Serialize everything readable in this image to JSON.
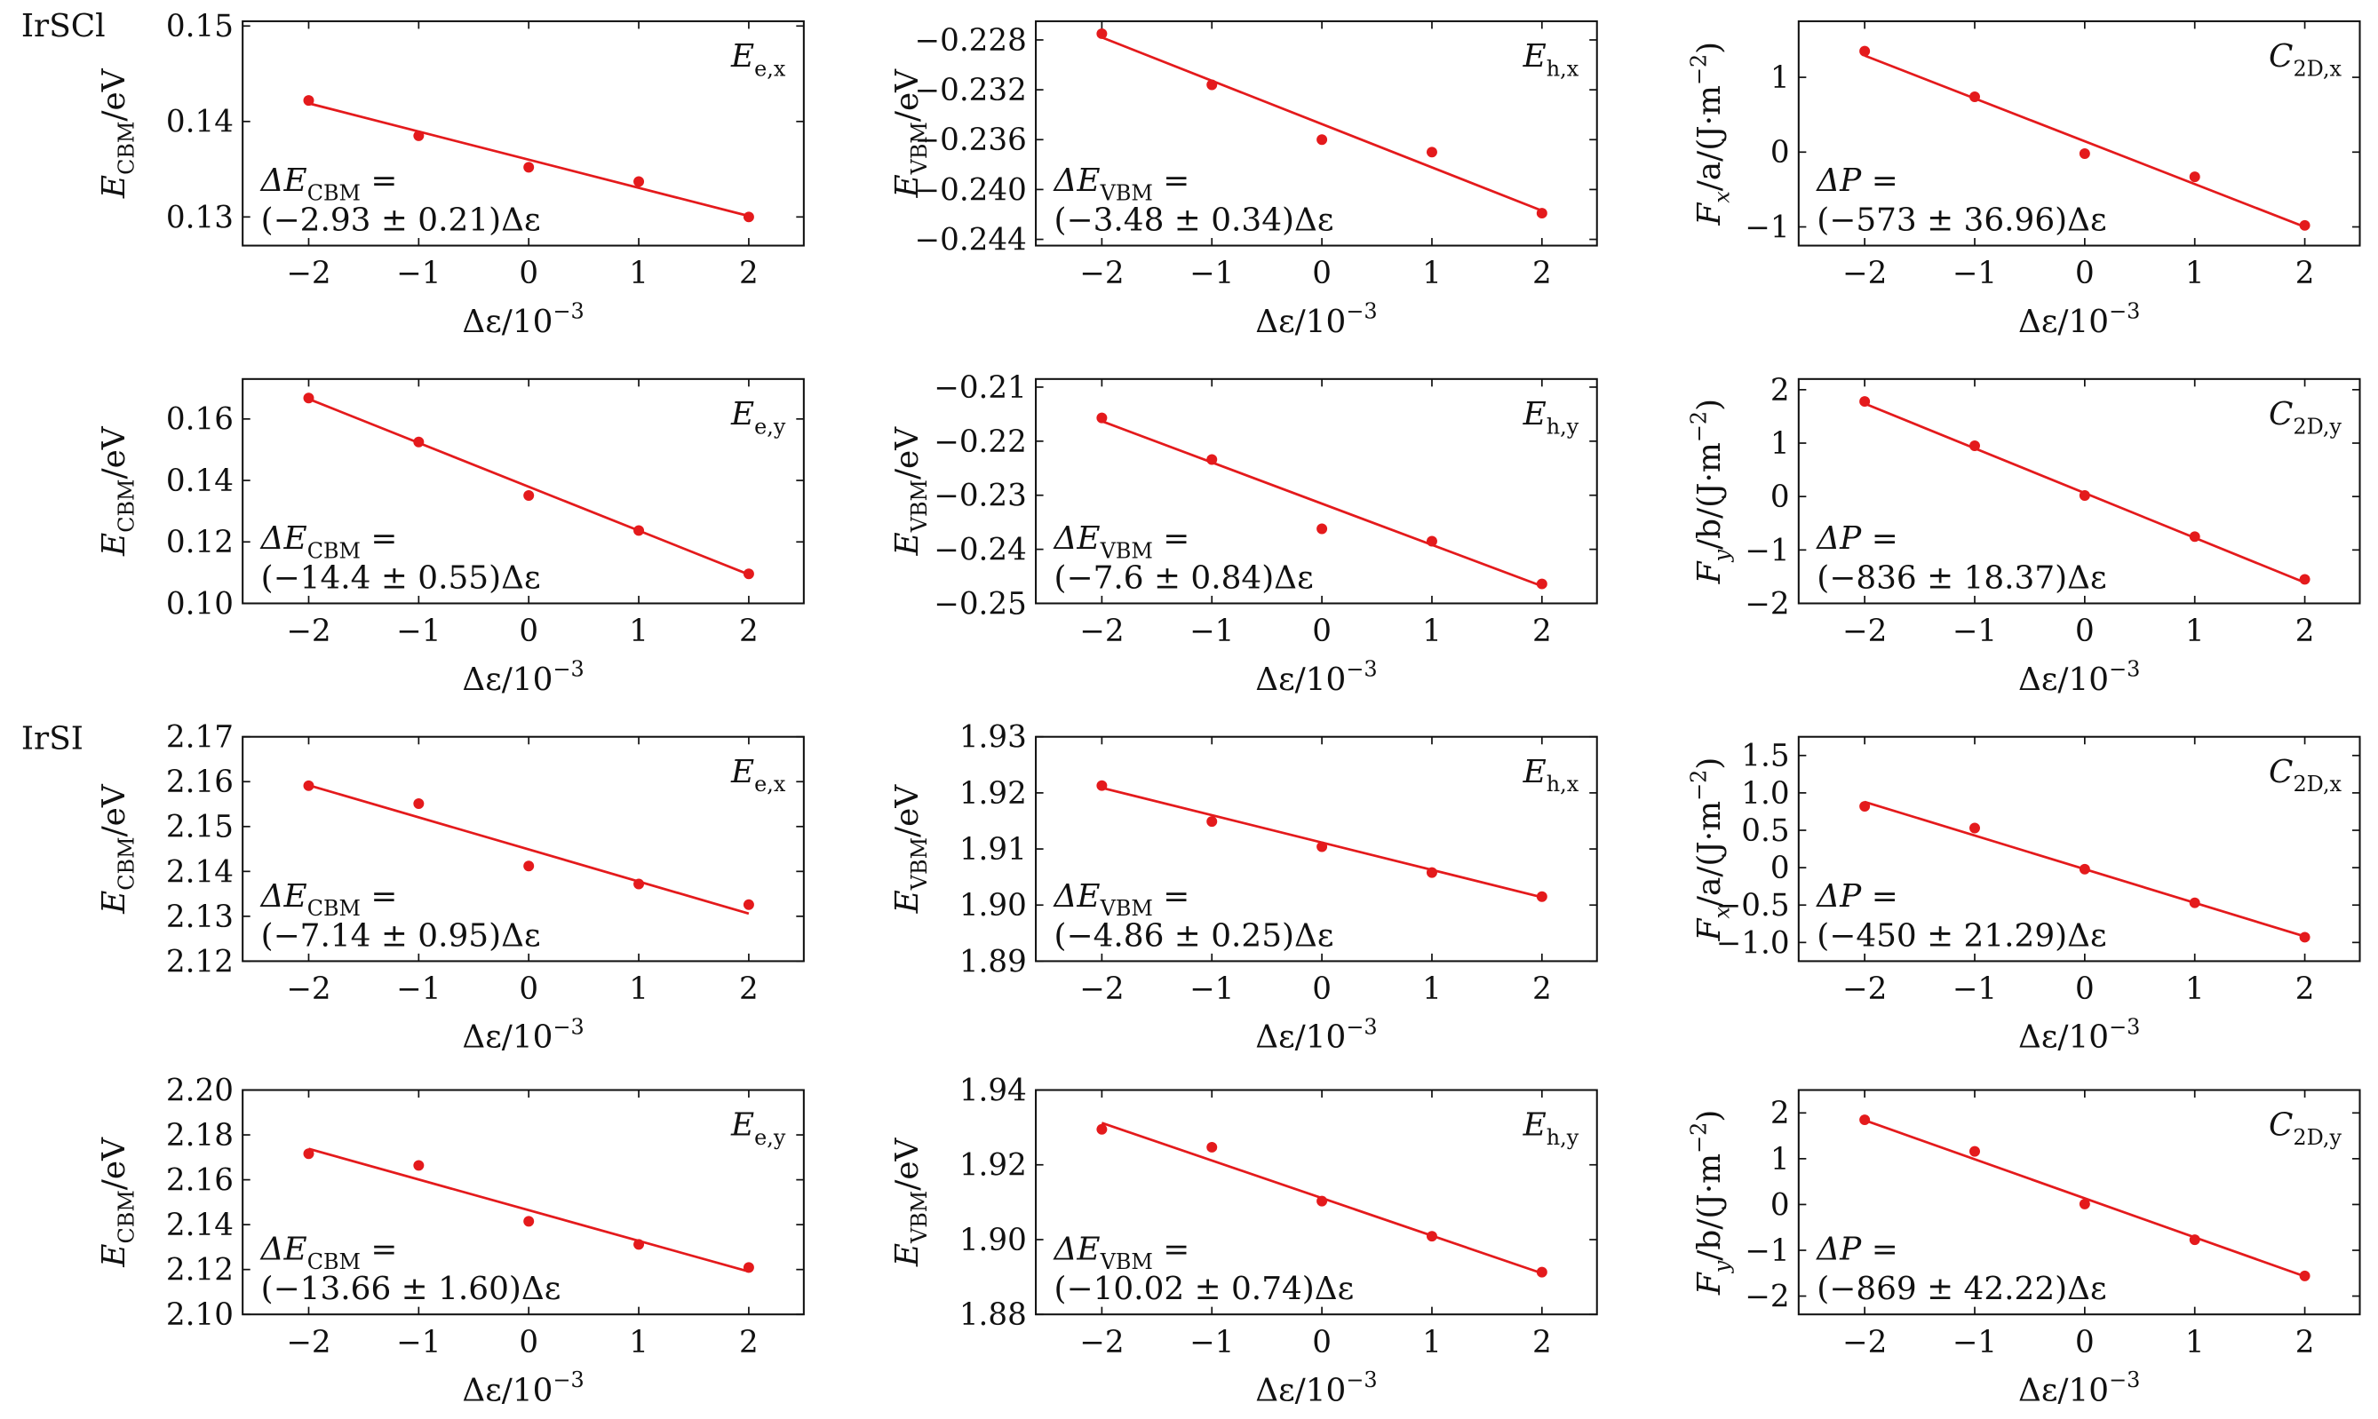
{
  "colors": {
    "data": "#e41a1c",
    "fit": "#e41a1c",
    "axis": "#111111"
  },
  "chart_data": [
    {
      "id": "irscl-e-x",
      "type": "scatter",
      "group": "IrSCl",
      "x": [
        -2,
        -1,
        0,
        1,
        2
      ],
      "y": [
        0.1422,
        0.1385,
        0.1352,
        0.1337,
        0.13
      ],
      "fit": {
        "x": [
          -2,
          2
        ],
        "y": [
          0.1419,
          0.1301
        ]
      },
      "xlim": [
        -2.6,
        2.5
      ],
      "ylim": [
        0.127,
        0.1505
      ],
      "xticks": [
        -2,
        -1,
        0,
        1,
        2
      ],
      "xtick_labels": [
        "−2",
        "−1",
        "0",
        "1",
        "2"
      ],
      "yticks": [
        0.13,
        0.14,
        0.15
      ],
      "ytick_labels": [
        "0.13",
        "0.14",
        "0.15"
      ],
      "ylabel_main": "E",
      "ylabel_sub": "CBM",
      "ylabel_unit": "/eV",
      "xlabel_main": "Δε/10",
      "xlabel_sup": "−3",
      "tag_main": "E",
      "tag_sub": "e,x",
      "annot_line1_main": "ΔE",
      "annot_line1_sub": "CBM",
      "annot_line1_tail": " =",
      "annot_line2": "(−2.93 ± 0.21)Δε"
    },
    {
      "id": "irscl-h-x",
      "type": "scatter",
      "group": "IrSCl",
      "x": [
        -2,
        -1,
        0,
        1,
        2
      ],
      "y": [
        -0.2275,
        -0.2316,
        -0.236,
        -0.237,
        -0.2419
      ],
      "fit": {
        "x": [
          -2,
          2
        ],
        "y": [
          -0.2278,
          -0.2417
        ]
      },
      "xlim": [
        -2.6,
        2.5
      ],
      "ylim": [
        -0.2445,
        -0.2265
      ],
      "xticks": [
        -2,
        -1,
        0,
        1,
        2
      ],
      "xtick_labels": [
        "−2",
        "−1",
        "0",
        "1",
        "2"
      ],
      "yticks": [
        -0.228,
        -0.232,
        -0.236,
        -0.24,
        -0.244
      ],
      "ytick_labels": [
        "−0.228",
        "−0.232",
        "−0.236",
        "−0.240",
        "−0.244"
      ],
      "ylabel_main": "E",
      "ylabel_sub": "VBM",
      "ylabel_unit": "/eV",
      "xlabel_main": "Δε/10",
      "xlabel_sup": "−3",
      "tag_main": "E",
      "tag_sub": "h,x",
      "annot_line1_main": "ΔE",
      "annot_line1_sub": "VBM",
      "annot_line1_tail": " =",
      "annot_line2": "(−3.48 ± 0.34)Δε"
    },
    {
      "id": "irscl-c-x",
      "type": "scatter",
      "group": "IrSCl",
      "x": [
        -2,
        -1,
        0,
        1,
        2
      ],
      "y": [
        1.35,
        0.74,
        -0.02,
        -0.33,
        -0.98
      ],
      "fit": {
        "x": [
          -2,
          2
        ],
        "y": [
          1.29,
          -1.0
        ]
      },
      "xlim": [
        -2.6,
        2.5
      ],
      "ylim": [
        -1.25,
        1.75
      ],
      "xticks": [
        -2,
        -1,
        0,
        1,
        2
      ],
      "xtick_labels": [
        "−2",
        "−1",
        "0",
        "1",
        "2"
      ],
      "yticks": [
        -1,
        0,
        1
      ],
      "ytick_labels": [
        "−1",
        "0",
        "1"
      ],
      "ylabel_main": "F",
      "ylabel_sub": "x",
      "ylabel_unit": "/a/(J·m",
      "ylabel_sup": "−2",
      "ylabel_close": ")",
      "xlabel_main": "Δε/10",
      "xlabel_sup": "−3",
      "tag_main": "C",
      "tag_sub": "2D,x",
      "annot_line1_main": "ΔP",
      "annot_line1_sub": "",
      "annot_line1_tail": " =",
      "annot_line2": "(−573 ± 36.96)Δε"
    },
    {
      "id": "irscl-e-y",
      "type": "scatter",
      "group": "IrSCl",
      "x": [
        -2,
        -1,
        0,
        1,
        2
      ],
      "y": [
        0.1668,
        0.1525,
        0.1351,
        0.1237,
        0.1096
      ],
      "fit": {
        "x": [
          -2,
          2
        ],
        "y": [
          0.1665,
          0.1094
        ]
      },
      "xlim": [
        -2.6,
        2.5
      ],
      "ylim": [
        0.1,
        0.173
      ],
      "xticks": [
        -2,
        -1,
        0,
        1,
        2
      ],
      "xtick_labels": [
        "−2",
        "−1",
        "0",
        "1",
        "2"
      ],
      "yticks": [
        0.1,
        0.12,
        0.14,
        0.16
      ],
      "ytick_labels": [
        "0.10",
        "0.12",
        "0.14",
        "0.16"
      ],
      "ylabel_main": "E",
      "ylabel_sub": "CBM",
      "ylabel_unit": "/eV",
      "xlabel_main": "Δε/10",
      "xlabel_sup": "−3",
      "tag_main": "E",
      "tag_sub": "e,y",
      "annot_line1_main": "ΔE",
      "annot_line1_sub": "CBM",
      "annot_line1_tail": " =",
      "annot_line2": "(−14.4 ± 0.55)Δε"
    },
    {
      "id": "irscl-h-y",
      "type": "scatter",
      "group": "IrSCl",
      "x": [
        -2,
        -1,
        0,
        1,
        2
      ],
      "y": [
        -0.2157,
        -0.2234,
        -0.2362,
        -0.2385,
        -0.2464
      ],
      "fit": {
        "x": [
          -2,
          2
        ],
        "y": [
          -0.2163,
          -0.2468
        ]
      },
      "xlim": [
        -2.6,
        2.5
      ],
      "ylim": [
        -0.25,
        -0.2085
      ],
      "xticks": [
        -2,
        -1,
        0,
        1,
        2
      ],
      "xtick_labels": [
        "−2",
        "−1",
        "0",
        "1",
        "2"
      ],
      "yticks": [
        -0.21,
        -0.22,
        -0.23,
        -0.24,
        -0.25
      ],
      "ytick_labels": [
        "−0.21",
        "−0.22",
        "−0.23",
        "−0.24",
        "−0.25"
      ],
      "ylabel_main": "E",
      "ylabel_sub": "VBM",
      "ylabel_unit": "/eV",
      "xlabel_main": "Δε/10",
      "xlabel_sup": "−3",
      "tag_main": "E",
      "tag_sub": "h,y",
      "annot_line1_main": "ΔE",
      "annot_line1_sub": "VBM",
      "annot_line1_tail": " =",
      "annot_line2": "(−7.6 ± 0.84)Δε"
    },
    {
      "id": "irscl-c-y",
      "type": "scatter",
      "group": "IrSCl",
      "x": [
        -2,
        -1,
        0,
        1,
        2
      ],
      "y": [
        1.78,
        0.95,
        0.02,
        -0.75,
        -1.55
      ],
      "fit": {
        "x": [
          -2,
          2
        ],
        "y": [
          1.74,
          -1.61
        ]
      },
      "xlim": [
        -2.6,
        2.5
      ],
      "ylim": [
        -2.0,
        2.2
      ],
      "xticks": [
        -2,
        -1,
        0,
        1,
        2
      ],
      "xtick_labels": [
        "−2",
        "−1",
        "0",
        "1",
        "2"
      ],
      "yticks": [
        -2,
        -1,
        0,
        1,
        2
      ],
      "ytick_labels": [
        "−2",
        "−1",
        "0",
        "1",
        "2"
      ],
      "ylabel_main": "F",
      "ylabel_sub": "y",
      "ylabel_unit": "/b/(J·m",
      "ylabel_sup": "−2",
      "ylabel_close": ")",
      "xlabel_main": "Δε/10",
      "xlabel_sup": "−3",
      "tag_main": "C",
      "tag_sub": "2D,y",
      "annot_line1_main": "ΔP",
      "annot_line1_sub": "",
      "annot_line1_tail": " =",
      "annot_line2": "(−836 ± 18.37)Δε"
    },
    {
      "id": "irsi-e-x",
      "type": "scatter",
      "group": "IrSI",
      "x": [
        -2,
        -1,
        0,
        1,
        2
      ],
      "y": [
        2.1591,
        2.1551,
        2.1412,
        2.1372,
        2.1326
      ],
      "fit": {
        "x": [
          -2,
          2
        ],
        "y": [
          2.1592,
          2.1306
        ]
      },
      "xlim": [
        -2.6,
        2.5
      ],
      "ylim": [
        2.12,
        2.17
      ],
      "xticks": [
        -2,
        -1,
        0,
        1,
        2
      ],
      "xtick_labels": [
        "−2",
        "−1",
        "0",
        "1",
        "2"
      ],
      "yticks": [
        2.12,
        2.13,
        2.14,
        2.15,
        2.16,
        2.17
      ],
      "ytick_labels": [
        "2.12",
        "2.13",
        "2.14",
        "2.15",
        "2.16",
        "2.17"
      ],
      "ylabel_main": "E",
      "ylabel_sub": "CBM",
      "ylabel_unit": "/eV",
      "xlabel_main": "Δε/10",
      "xlabel_sup": "−3",
      "tag_main": "E",
      "tag_sub": "e,x",
      "annot_line1_main": "ΔE",
      "annot_line1_sub": "CBM",
      "annot_line1_tail": " =",
      "annot_line2": "(−7.14 ± 0.95)Δε"
    },
    {
      "id": "irsi-h-x",
      "type": "scatter",
      "group": "IrSI",
      "x": [
        -2,
        -1,
        0,
        1,
        2
      ],
      "y": [
        1.9213,
        1.9149,
        1.9104,
        1.9058,
        1.9015
      ],
      "fit": {
        "x": [
          -2,
          2
        ],
        "y": [
          1.9209,
          1.9014
        ]
      },
      "xlim": [
        -2.6,
        2.5
      ],
      "ylim": [
        1.89,
        1.93
      ],
      "xticks": [
        -2,
        -1,
        0,
        1,
        2
      ],
      "xtick_labels": [
        "−2",
        "−1",
        "0",
        "1",
        "2"
      ],
      "yticks": [
        1.89,
        1.9,
        1.91,
        1.92,
        1.93
      ],
      "ytick_labels": [
        "1.89",
        "1.90",
        "1.91",
        "1.92",
        "1.93"
      ],
      "ylabel_main": "E",
      "ylabel_sub": "VBM",
      "ylabel_unit": "/eV",
      "xlabel_main": "Δε/10",
      "xlabel_sup": "−3",
      "tag_main": "E",
      "tag_sub": "h,x",
      "annot_line1_main": "ΔE",
      "annot_line1_sub": "VBM",
      "annot_line1_tail": " =",
      "annot_line2": "(−4.86 ± 0.25)Δε"
    },
    {
      "id": "irsi-c-x",
      "type": "scatter",
      "group": "IrSI",
      "x": [
        -2,
        -1,
        0,
        1,
        2
      ],
      "y": [
        0.82,
        0.53,
        -0.02,
        -0.47,
        -0.93
      ],
      "fit": {
        "x": [
          -2,
          2
        ],
        "y": [
          0.88,
          -0.92
        ]
      },
      "xlim": [
        -2.6,
        2.5
      ],
      "ylim": [
        -1.25,
        1.75
      ],
      "xticks": [
        -2,
        -1,
        0,
        1,
        2
      ],
      "xtick_labels": [
        "−2",
        "−1",
        "0",
        "1",
        "2"
      ],
      "yticks": [
        -1.0,
        -0.5,
        0,
        0.5,
        1.0,
        1.5
      ],
      "ytick_labels": [
        "−1.0",
        "−0.5",
        "0",
        "0.5",
        "1.0",
        "1.5"
      ],
      "ylabel_main": "F",
      "ylabel_sub": "x",
      "ylabel_unit": "/a/(J·m",
      "ylabel_sup": "−2",
      "ylabel_close": ")",
      "xlabel_main": "Δε/10",
      "xlabel_sup": "−3",
      "tag_main": "C",
      "tag_sub": "2D,x",
      "annot_line1_main": "ΔP",
      "annot_line1_sub": "",
      "annot_line1_tail": " =",
      "annot_line2": "(−450 ± 21.29)Δε"
    },
    {
      "id": "irsi-e-y",
      "type": "scatter",
      "group": "IrSI",
      "x": [
        -2,
        -1,
        0,
        1,
        2
      ],
      "y": [
        2.1716,
        2.1664,
        2.1415,
        2.1312,
        2.1209
      ],
      "fit": {
        "x": [
          -2,
          2
        ],
        "y": [
          2.1738,
          2.1191
        ]
      },
      "xlim": [
        -2.6,
        2.5
      ],
      "ylim": [
        2.1,
        2.2
      ],
      "xticks": [
        -2,
        -1,
        0,
        1,
        2
      ],
      "xtick_labels": [
        "−2",
        "−1",
        "0",
        "1",
        "2"
      ],
      "yticks": [
        2.1,
        2.12,
        2.14,
        2.16,
        2.18,
        2.2
      ],
      "ytick_labels": [
        "2.10",
        "2.12",
        "2.14",
        "2.16",
        "2.18",
        "2.20"
      ],
      "ylabel_main": "E",
      "ylabel_sub": "CBM",
      "ylabel_unit": "/eV",
      "xlabel_main": "Δε/10",
      "xlabel_sup": "−3",
      "tag_main": "E",
      "tag_sub": "e,y",
      "annot_line1_main": "ΔE",
      "annot_line1_sub": "CBM",
      "annot_line1_tail": " =",
      "annot_line2": "(−13.66 ± 1.60)Δε"
    },
    {
      "id": "irsi-h-y",
      "type": "scatter",
      "group": "IrSI",
      "x": [
        -2,
        -1,
        0,
        1,
        2
      ],
      "y": [
        1.9295,
        1.9247,
        1.9103,
        1.9009,
        1.8913
      ],
      "fit": {
        "x": [
          -2,
          2
        ],
        "y": [
          1.9312,
          1.891
        ]
      },
      "xlim": [
        -2.6,
        2.5
      ],
      "ylim": [
        1.88,
        1.94
      ],
      "xticks": [
        -2,
        -1,
        0,
        1,
        2
      ],
      "xtick_labels": [
        "−2",
        "−1",
        "0",
        "1",
        "2"
      ],
      "yticks": [
        1.88,
        1.9,
        1.92,
        1.94
      ],
      "ytick_labels": [
        "1.88",
        "1.90",
        "1.92",
        "1.94"
      ],
      "ylabel_main": "E",
      "ylabel_sub": "VBM",
      "ylabel_unit": "/eV",
      "xlabel_main": "Δε/10",
      "xlabel_sup": "−3",
      "tag_main": "E",
      "tag_sub": "h,y",
      "annot_line1_main": "ΔE",
      "annot_line1_sub": "VBM",
      "annot_line1_tail": " =",
      "annot_line2": "(−10.02 ± 0.74)Δε"
    },
    {
      "id": "irsi-c-y",
      "type": "scatter",
      "group": "IrSI",
      "x": [
        -2,
        -1,
        0,
        1,
        2
      ],
      "y": [
        1.85,
        1.16,
        0.01,
        -0.77,
        -1.56
      ],
      "fit": {
        "x": [
          -2,
          2
        ],
        "y": [
          1.84,
          -1.57
        ]
      },
      "xlim": [
        -2.6,
        2.5
      ],
      "ylim": [
        -2.4,
        2.5
      ],
      "xticks": [
        -2,
        -1,
        0,
        1,
        2
      ],
      "xtick_labels": [
        "−2",
        "−1",
        "0",
        "1",
        "2"
      ],
      "yticks": [
        -2,
        -1,
        0,
        1,
        2
      ],
      "ytick_labels": [
        "−2",
        "−1",
        "0",
        "1",
        "2"
      ],
      "ylabel_main": "F",
      "ylabel_sub": "y",
      "ylabel_unit": "/b/(J·m",
      "ylabel_sup": "−2",
      "ylabel_close": ")",
      "xlabel_main": "Δε/10",
      "xlabel_sup": "−3",
      "tag_main": "C",
      "tag_sub": "2D,y",
      "annot_line1_main": "ΔP",
      "annot_line1_sub": "",
      "annot_line1_tail": " =",
      "annot_line2": "(−869 ± 42.22)Δε"
    }
  ],
  "group_labels": [
    "IrSCl",
    "IrSI"
  ]
}
